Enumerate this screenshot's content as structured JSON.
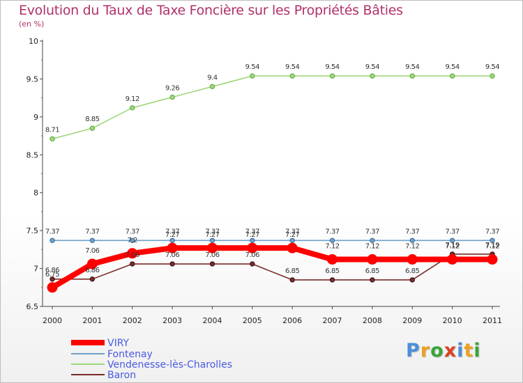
{
  "chart_data": {
    "type": "line",
    "title": "Evolution du Taux de Taxe Foncière sur les Propriétés Bâties",
    "subtitle": "(en %)",
    "x": [
      "2000",
      "2001",
      "2002",
      "2003",
      "2004",
      "2005",
      "2006",
      "2007",
      "2008",
      "2009",
      "2010",
      "2011"
    ],
    "ylim": [
      6.5,
      10
    ],
    "yticks": [
      "6.5",
      "7",
      "7.5",
      "8",
      "8.5",
      "9",
      "9.5",
      "10"
    ],
    "legend_position": "bottom-left",
    "series": [
      {
        "name": "VIRY",
        "color": "#ff0000",
        "values": [
          6.75,
          7.06,
          7.2,
          7.27,
          7.27,
          7.27,
          7.27,
          7.12,
          7.12,
          7.12,
          7.12,
          7.12
        ],
        "labels": [
          "6.75",
          "7.06",
          "7.2",
          "7.27",
          "7.27",
          "7.27",
          "7.27",
          "7.12",
          "7.12",
          "7.12",
          "7.12",
          "7.12"
        ]
      },
      {
        "name": "Fontenay",
        "color": "#6ea0c8",
        "values": [
          7.37,
          7.37,
          7.37,
          7.37,
          7.37,
          7.37,
          7.37,
          7.37,
          7.37,
          7.37,
          7.37,
          7.37
        ],
        "labels": [
          "7.37",
          "7.37",
          "7.37",
          "7.37",
          "7.37",
          "7.37",
          "7.37",
          "7.37",
          "7.37",
          "7.37",
          "7.37",
          "7.37"
        ]
      },
      {
        "name": "Vendenesse-lès-Charolles",
        "color": "#9ed77a",
        "values": [
          8.71,
          8.85,
          9.12,
          9.26,
          9.4,
          9.54,
          9.54,
          9.54,
          9.54,
          9.54,
          9.54,
          9.54
        ],
        "labels": [
          "8.71",
          "8.85",
          "9.12",
          "9.26",
          "9.4",
          "9.54",
          "9.54",
          "9.54",
          "9.54",
          "9.54",
          "9.54",
          "9.54"
        ]
      },
      {
        "name": "Baron",
        "color": "#7a2a2a",
        "values": [
          6.86,
          6.86,
          7.06,
          7.06,
          7.06,
          7.06,
          6.85,
          6.85,
          6.85,
          6.85,
          7.19,
          7.19
        ],
        "labels": [
          "6.86",
          "6.86",
          "7.06",
          "7.06",
          "7.06",
          "7.06",
          "6.85",
          "6.85",
          "6.85",
          "6.85",
          "7.19",
          "7.19"
        ]
      }
    ]
  },
  "logo": {
    "text": "Proxiti"
  }
}
